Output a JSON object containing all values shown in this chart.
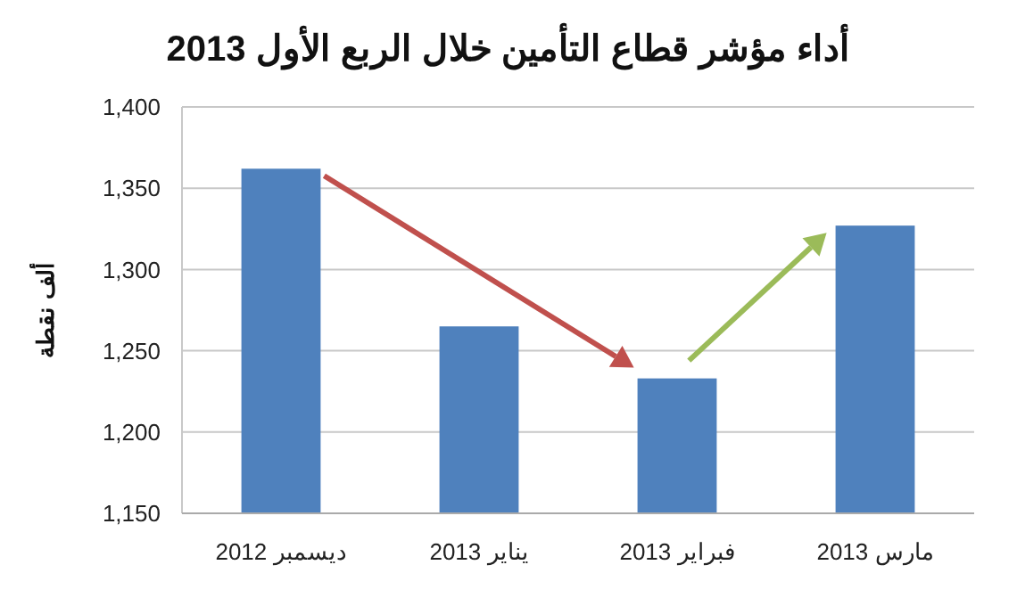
{
  "chart_data": {
    "type": "bar",
    "title": "أداء مؤشر قطاع التأمين خلال الربع الأول 2013",
    "ylabel": "ألف نقطة",
    "categories": [
      "ديسمبر 2012",
      "يناير 2013",
      "فبراير 2013",
      "مارس 2013"
    ],
    "values": [
      1362,
      1265,
      1233,
      1327
    ],
    "color": "#4f81bd",
    "ylim": [
      1150,
      1400
    ],
    "yticks": [
      {
        "value": 1150,
        "label": "1,150"
      },
      {
        "value": 1200,
        "label": "1,200"
      },
      {
        "value": 1250,
        "label": "1,250"
      },
      {
        "value": 1300,
        "label": "1,300"
      },
      {
        "value": 1350,
        "label": "1,350"
      },
      {
        "value": 1400,
        "label": "1,400"
      }
    ],
    "grid": "y"
  }
}
